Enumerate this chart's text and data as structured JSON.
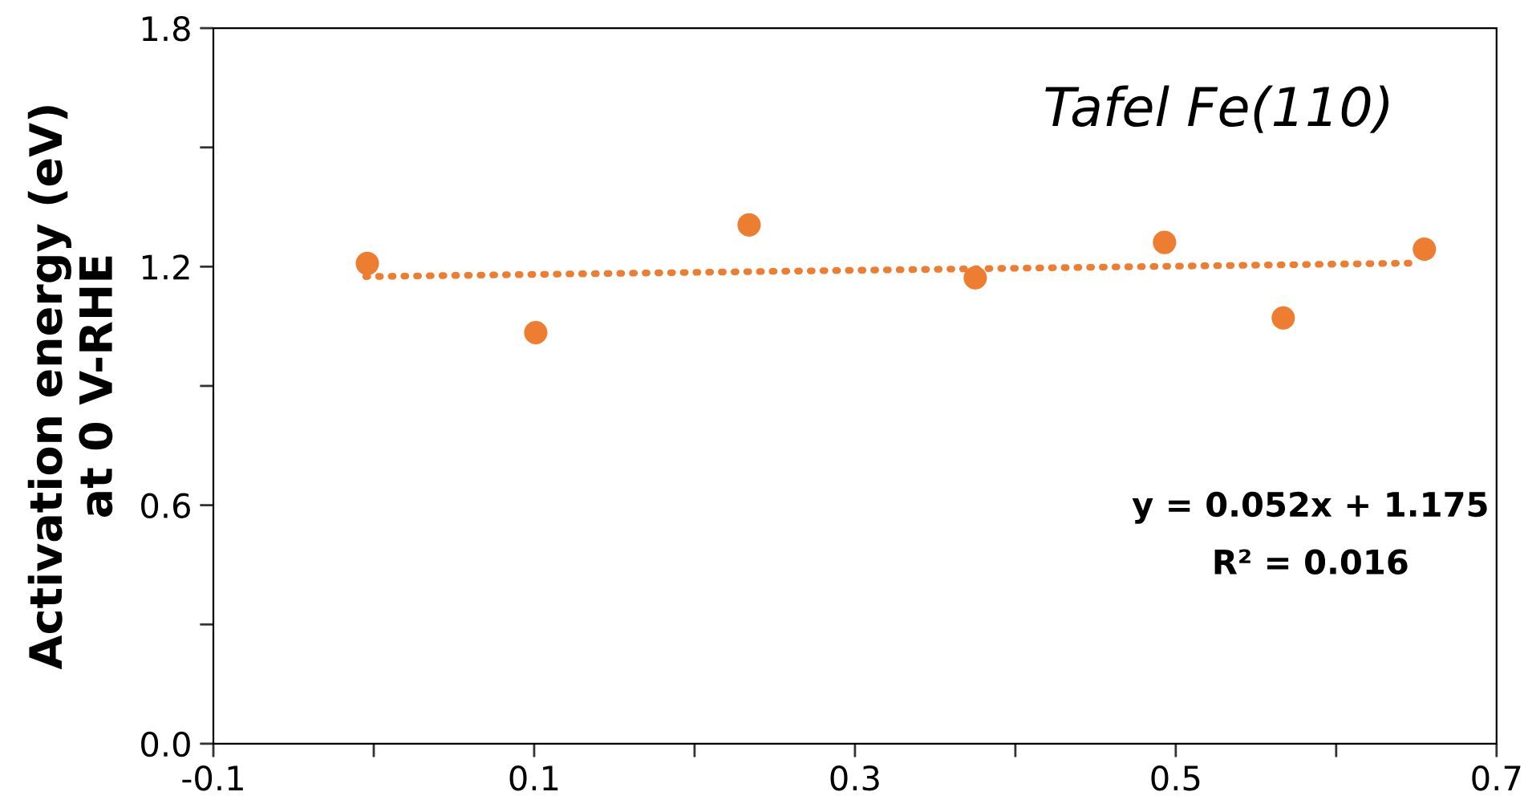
{
  "chart_data": {
    "type": "scatter",
    "title": "Tafel Fe(110)",
    "ylabel": "Activation energy (eV)\nat 0 V-RHE",
    "annotations": [
      "y = 0.052x + 1.175",
      "R² = 0.016"
    ],
    "series": [
      {
        "color": "#ed7d31",
        "x": [
          -0.004,
          0.101,
          0.234,
          0.375,
          0.493,
          0.567,
          0.655
        ],
        "values": [
          1.208,
          1.034,
          1.305,
          1.172,
          1.261,
          1.071,
          1.244
        ],
        "marker": "circle"
      },
      {
        "type": "line",
        "color": "#ed7d31",
        "x": [
          -0.005,
          0.65
        ],
        "values": [
          1.175,
          1.209
        ],
        "line_style": "dotted",
        "marker": "none"
      }
    ],
    "xlim": [
      -0.1,
      0.7
    ],
    "xticks": [
      -0.1,
      {
        "value": 0.0,
        "label": null
      },
      0.1,
      {
        "value": 0.2,
        "label": null
      },
      0.3,
      {
        "value": 0.4,
        "label": null
      },
      0.5,
      {
        "value": 0.6,
        "label": null
      },
      0.7
    ],
    "ylim": [
      0.0,
      1.8
    ],
    "yticks": [
      {
        "value": 0.0,
        "label": "0.0"
      },
      {
        "value": 0.3,
        "label": null
      },
      0.6,
      {
        "value": 0.9,
        "label": null
      },
      1.2,
      {
        "value": 1.5,
        "label": null
      },
      1.8
    ],
    "grid": false,
    "legend": false
  }
}
